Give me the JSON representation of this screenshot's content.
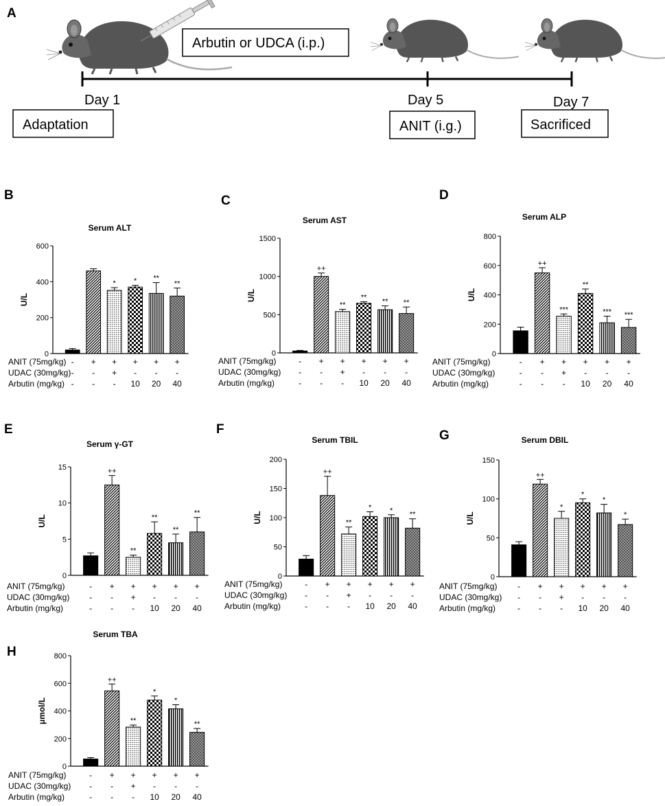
{
  "panel_letters": [
    "A",
    "B",
    "C",
    "D",
    "E",
    "F",
    "G",
    "H"
  ],
  "timeline": {
    "treatment": "Arbutin or UDCA  (i.p.)",
    "day1": "Day 1",
    "day5": "Day 5",
    "day7": "Day 7",
    "adaptation": "Adaptation",
    "anit": "ANIT (i.g.)",
    "sacrificed": "Sacrificed"
  },
  "row_labels": {
    "anit": "ANIT (75mg/kg)",
    "udac": "UDAC (30mg/kg)",
    "arbutin": "Arbutin (mg/kg)"
  },
  "group_symbols": {
    "anit": [
      "-",
      "+",
      "+",
      "+",
      "+",
      "+"
    ],
    "udac": [
      "-",
      "-",
      "+",
      "-",
      "-",
      "-"
    ],
    "arbutin": [
      "-",
      "-",
      "-",
      "10",
      "20",
      "40"
    ]
  },
  "colors": {
    "control": "#000000",
    "ink": "#000000",
    "background": "#ffffff"
  },
  "chart_data": [
    {
      "type": "bar",
      "panel": "B",
      "title": "Serum ALT",
      "ylabel": "U/L",
      "ylim": [
        0,
        600
      ],
      "yticks": [
        0,
        200,
        400,
        600
      ],
      "values": [
        20,
        460,
        352,
        370,
        335,
        320
      ],
      "errors": [
        8,
        12,
        15,
        10,
        60,
        45
      ],
      "significance": [
        "",
        "",
        "*",
        "*",
        "**",
        "**"
      ]
    },
    {
      "type": "bar",
      "panel": "C",
      "title": "Serum AST",
      "ylabel": "U/L",
      "ylim": [
        0,
        1500
      ],
      "yticks": [
        0,
        500,
        1000,
        1500
      ],
      "values": [
        25,
        1000,
        540,
        650,
        565,
        515
      ],
      "errors": [
        8,
        45,
        30,
        20,
        50,
        85
      ],
      "significance": [
        "",
        "++",
        "**",
        "**",
        "**",
        "**"
      ]
    },
    {
      "type": "bar",
      "panel": "D",
      "title": "Serum ALP",
      "ylabel": "U/L",
      "ylim": [
        0,
        800
      ],
      "yticks": [
        0,
        200,
        400,
        600,
        800
      ],
      "values": [
        155,
        550,
        255,
        410,
        210,
        178
      ],
      "errors": [
        25,
        35,
        15,
        30,
        45,
        55
      ],
      "significance": [
        "",
        "++",
        "***",
        "**",
        "***",
        "***"
      ]
    },
    {
      "type": "bar",
      "panel": "E",
      "title": "Serum γ-GT",
      "ylabel": "U/L",
      "ylim": [
        0,
        15
      ],
      "yticks": [
        0,
        5,
        10,
        15
      ],
      "values": [
        2.7,
        12.5,
        2.5,
        5.8,
        4.5,
        6.0
      ],
      "errors": [
        0.4,
        1.3,
        0.3,
        1.6,
        1.2,
        2.0
      ],
      "significance": [
        "",
        "++",
        "**",
        "**",
        "**",
        "**"
      ]
    },
    {
      "type": "bar",
      "panel": "F",
      "title": "Serum TBIL",
      "ylabel": "U/L",
      "ylim": [
        0,
        200
      ],
      "yticks": [
        0,
        50,
        100,
        150,
        200
      ],
      "values": [
        29,
        138,
        72,
        102,
        100,
        82
      ],
      "errors": [
        6,
        33,
        12,
        8,
        5,
        16
      ],
      "significance": [
        "",
        "++",
        "**",
        "*",
        "*",
        "**"
      ]
    },
    {
      "type": "bar",
      "panel": "G",
      "title": "Serum DBIL",
      "ylabel": "U/L",
      "ylim": [
        0,
        150
      ],
      "yticks": [
        0,
        50,
        100,
        150
      ],
      "values": [
        41,
        119,
        75,
        95,
        82,
        67
      ],
      "errors": [
        4,
        6,
        9,
        5,
        11,
        7
      ],
      "significance": [
        "",
        "++",
        "*",
        "*",
        "*",
        "*"
      ]
    },
    {
      "type": "bar",
      "panel": "H",
      "title": "Serum TBA",
      "ylabel": "μmol/L",
      "ylim": [
        0,
        800
      ],
      "yticks": [
        0,
        200,
        400,
        600,
        800
      ],
      "values": [
        52,
        545,
        283,
        478,
        415,
        245
      ],
      "errors": [
        10,
        50,
        15,
        30,
        30,
        28
      ],
      "significance": [
        "",
        "++",
        "**",
        "*",
        "*",
        "**"
      ]
    }
  ]
}
